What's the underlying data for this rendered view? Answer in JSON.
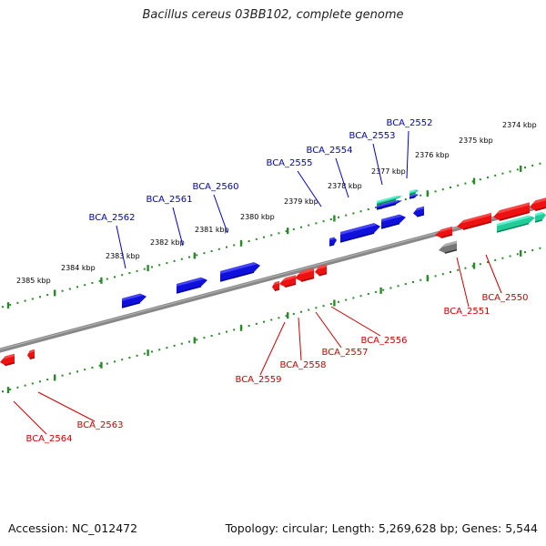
{
  "title": "Bacillus cereus 03BB102, complete genome",
  "footer": {
    "accession": "Accession: NC_012472",
    "summary": "Topology: circular; Length: 5,269,628 bp; Genes: 5,544"
  },
  "colors": {
    "backbone": "#888888",
    "ticks": "#2a8a2a",
    "forward_gene": "#1010dd",
    "reverse_gene": "#ee1111",
    "rna_gene": "#22cc99",
    "other_gene": "#777777",
    "forward_label": "#0000cc",
    "reverse_label": "#cc0000"
  },
  "tick_labels": [
    "2374 kbp",
    "2375 kbp",
    "2376 kbp",
    "2377 kbp",
    "2378 kbp",
    "2379 kbp",
    "2380 kbp",
    "2381 kbp",
    "2382 kbp",
    "2383 kbp",
    "2384 kbp",
    "2385 kbp"
  ],
  "forward_genes": [
    "BCA_2552",
    "BCA_2553",
    "BCA_2554",
    "BCA_2555",
    "BCA_2560",
    "BCA_2561",
    "BCA_2562"
  ],
  "reverse_genes": [
    "BCA_2550",
    "BCA_2551",
    "BCA_2556",
    "BCA_2557",
    "BCA_2558",
    "BCA_2559",
    "BCA_2563",
    "BCA_2564"
  ]
}
